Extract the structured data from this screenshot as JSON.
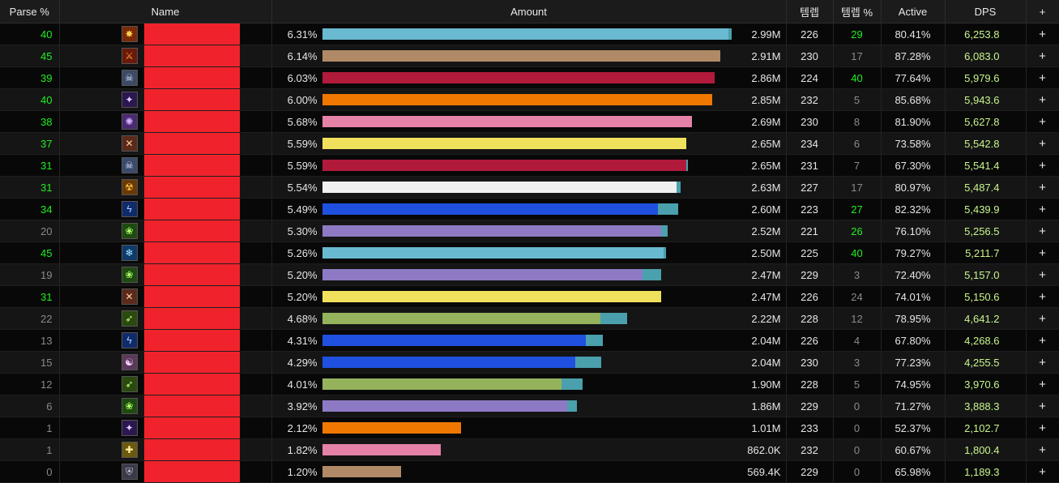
{
  "headers": {
    "parse": "Parse %",
    "name": "Name",
    "amount": "Amount",
    "ilvl": "템렙",
    "ilvl_pct": "템렙 %",
    "active": "Active",
    "dps": "DPS",
    "plus": "+"
  },
  "rows": [
    {
      "parse": "40",
      "parse_color": "#1ff01f",
      "icon": "fire-icon",
      "glyph": "✸",
      "icon_bg": "#7a2a06",
      "icon_fg": "#ffcf4a",
      "name": "",
      "pct": "6.31%",
      "fill": 0.963,
      "ext": 0.008,
      "color": "#69b9d1",
      "amount": "2.99M",
      "ilvl": "226",
      "ilvl_pct": "29",
      "ilvl_pct_color": "#1ff01f",
      "active": "80.41%",
      "dps": "6,253.8",
      "plus": "+"
    },
    {
      "parse": "45",
      "parse_color": "#1ff01f",
      "icon": "warrior-icon",
      "glyph": "⚔",
      "icon_bg": "#6a1a0a",
      "icon_fg": "#ffa040",
      "name": "",
      "pct": "6.14%",
      "fill": 0.945,
      "ext": 0,
      "color": "#b08a66",
      "amount": "2.91M",
      "ilvl": "230",
      "ilvl_pct": "17",
      "ilvl_pct_color": "#8a8a8a",
      "active": "87.28%",
      "dps": "6,083.0",
      "plus": "+"
    },
    {
      "parse": "39",
      "parse_color": "#1ff01f",
      "icon": "skull-icon",
      "glyph": "☠",
      "icon_bg": "#3c4a66",
      "icon_fg": "#dde6ff",
      "name": "",
      "pct": "6.03%",
      "fill": 0.93,
      "ext": 0,
      "color": "#b21a3b",
      "amount": "2.86M",
      "ilvl": "224",
      "ilvl_pct": "40",
      "ilvl_pct_color": "#1ff01f",
      "active": "77.64%",
      "dps": "5,979.6",
      "plus": "+"
    },
    {
      "parse": "40",
      "parse_color": "#1ff01f",
      "icon": "arcane-icon",
      "glyph": "✦",
      "icon_bg": "#2a1850",
      "icon_fg": "#e6c8ff",
      "name": "",
      "pct": "6.00%",
      "fill": 0.925,
      "ext": 0,
      "color": "#f07800",
      "amount": "2.85M",
      "ilvl": "232",
      "ilvl_pct": "5",
      "ilvl_pct_color": "#8a8a8a",
      "active": "85.68%",
      "dps": "5,943.6",
      "plus": "+"
    },
    {
      "parse": "38",
      "parse_color": "#1ff01f",
      "icon": "shadow-icon",
      "glyph": "✺",
      "icon_bg": "#4a2a70",
      "icon_fg": "#d6b0ff",
      "name": "",
      "pct": "5.68%",
      "fill": 0.877,
      "ext": 0,
      "color": "#e681a8",
      "amount": "2.69M",
      "ilvl": "230",
      "ilvl_pct": "8",
      "ilvl_pct_color": "#8a8a8a",
      "active": "81.90%",
      "dps": "5,627.8",
      "plus": "+"
    },
    {
      "parse": "37",
      "parse_color": "#1ff01f",
      "icon": "rogue-icon",
      "glyph": "✕",
      "icon_bg": "#5a2a1a",
      "icon_fg": "#ffd0a0",
      "name": "",
      "pct": "5.59%",
      "fill": 0.863,
      "ext": 0,
      "color": "#f0e15c",
      "amount": "2.65M",
      "ilvl": "234",
      "ilvl_pct": "6",
      "ilvl_pct_color": "#8a8a8a",
      "active": "73.58%",
      "dps": "5,542.8",
      "plus": "+"
    },
    {
      "parse": "31",
      "parse_color": "#1ff01f",
      "icon": "skull-icon",
      "glyph": "☠",
      "icon_bg": "#3a4a6a",
      "icon_fg": "#dde6ff",
      "name": "",
      "pct": "5.59%",
      "fill": 0.863,
      "ext": 0.004,
      "color": "#b21a3b",
      "amount": "2.65M",
      "ilvl": "231",
      "ilvl_pct": "7",
      "ilvl_pct_color": "#8a8a8a",
      "active": "67.30%",
      "dps": "5,541.4",
      "plus": "+"
    },
    {
      "parse": "31",
      "parse_color": "#1ff01f",
      "icon": "demon-icon",
      "glyph": "☢",
      "icon_bg": "#6a3a06",
      "icon_fg": "#ffc040",
      "name": "",
      "pct": "5.54%",
      "fill": 0.84,
      "ext": 0.009,
      "color": "#f0f0f0",
      "amount": "2.63M",
      "ilvl": "227",
      "ilvl_pct": "17",
      "ilvl_pct_color": "#8a8a8a",
      "active": "80.97%",
      "dps": "5,487.4",
      "plus": "+"
    },
    {
      "parse": "34",
      "parse_color": "#1ff01f",
      "icon": "lightning-icon",
      "glyph": "ϟ",
      "icon_bg": "#102a6a",
      "icon_fg": "#a8d0ff",
      "name": "",
      "pct": "5.49%",
      "fill": 0.797,
      "ext": 0.049,
      "color": "#1f50e0",
      "amount": "2.60M",
      "ilvl": "223",
      "ilvl_pct": "27",
      "ilvl_pct_color": "#1ff01f",
      "active": "82.32%",
      "dps": "5,439.9",
      "plus": "+"
    },
    {
      "parse": "20",
      "parse_color": "#8a8a8a",
      "icon": "nature-icon",
      "glyph": "❀",
      "icon_bg": "#1f4a10",
      "icon_fg": "#aaff66",
      "name": "",
      "pct": "5.30%",
      "fill": 0.803,
      "ext": 0.016,
      "color": "#8e7ac4",
      "amount": "2.52M",
      "ilvl": "221",
      "ilvl_pct": "26",
      "ilvl_pct_color": "#1ff01f",
      "active": "76.10%",
      "dps": "5,256.5",
      "plus": "+"
    },
    {
      "parse": "45",
      "parse_color": "#1ff01f",
      "icon": "frost-icon",
      "glyph": "❄",
      "icon_bg": "#103a6a",
      "icon_fg": "#9fe8ff",
      "name": "",
      "pct": "5.26%",
      "fill": 0.809,
      "ext": 0.006,
      "color": "#69b9d1",
      "amount": "2.50M",
      "ilvl": "225",
      "ilvl_pct": "40",
      "ilvl_pct_color": "#1ff01f",
      "active": "79.27%",
      "dps": "5,211.7",
      "plus": "+"
    },
    {
      "parse": "19",
      "parse_color": "#8a8a8a",
      "icon": "nature-icon",
      "glyph": "❀",
      "icon_bg": "#1f4a10",
      "icon_fg": "#aaff66",
      "name": "",
      "pct": "5.20%",
      "fill": 0.759,
      "ext": 0.045,
      "color": "#8e7ac4",
      "amount": "2.47M",
      "ilvl": "229",
      "ilvl_pct": "3",
      "ilvl_pct_color": "#8a8a8a",
      "active": "72.40%",
      "dps": "5,157.0",
      "plus": "+"
    },
    {
      "parse": "31",
      "parse_color": "#1ff01f",
      "icon": "rogue-icon",
      "glyph": "✕",
      "icon_bg": "#5a2a1a",
      "icon_fg": "#ffd0a0",
      "name": "",
      "pct": "5.20%",
      "fill": 0.803,
      "ext": 0,
      "color": "#f0e15c",
      "amount": "2.47M",
      "ilvl": "226",
      "ilvl_pct": "24",
      "ilvl_pct_color": "#8a8a8a",
      "active": "74.01%",
      "dps": "5,150.6",
      "plus": "+"
    },
    {
      "parse": "22",
      "parse_color": "#8a8a8a",
      "icon": "hunter-icon",
      "glyph": "➶",
      "icon_bg": "#2a4a10",
      "icon_fg": "#c8ff80",
      "name": "",
      "pct": "4.68%",
      "fill": 0.659,
      "ext": 0.063,
      "color": "#94b35c",
      "amount": "2.22M",
      "ilvl": "228",
      "ilvl_pct": "12",
      "ilvl_pct_color": "#8a8a8a",
      "active": "78.95%",
      "dps": "4,641.2",
      "plus": "+"
    },
    {
      "parse": "13",
      "parse_color": "#8a8a8a",
      "icon": "lightning-icon",
      "glyph": "ϟ",
      "icon_bg": "#102a6a",
      "icon_fg": "#a8d0ff",
      "name": "",
      "pct": "4.31%",
      "fill": 0.625,
      "ext": 0.04,
      "color": "#1f50e0",
      "amount": "2.04M",
      "ilvl": "226",
      "ilvl_pct": "4",
      "ilvl_pct_color": "#8a8a8a",
      "active": "67.80%",
      "dps": "4,268.6",
      "plus": "+"
    },
    {
      "parse": "15",
      "parse_color": "#8a8a8a",
      "icon": "monk-icon",
      "glyph": "☯",
      "icon_bg": "#5a3a5a",
      "icon_fg": "#ffd0ff",
      "name": "",
      "pct": "4.29%",
      "fill": 0.6,
      "ext": 0.062,
      "color": "#1f50e0",
      "amount": "2.04M",
      "ilvl": "230",
      "ilvl_pct": "3",
      "ilvl_pct_color": "#8a8a8a",
      "active": "77.23%",
      "dps": "4,255.5",
      "plus": "+"
    },
    {
      "parse": "12",
      "parse_color": "#8a8a8a",
      "icon": "hunter-icon",
      "glyph": "➶",
      "icon_bg": "#2a4a10",
      "icon_fg": "#c8ff80",
      "name": "",
      "pct": "4.01%",
      "fill": 0.568,
      "ext": 0.05,
      "color": "#94b35c",
      "amount": "1.90M",
      "ilvl": "228",
      "ilvl_pct": "5",
      "ilvl_pct_color": "#8a8a8a",
      "active": "74.95%",
      "dps": "3,970.6",
      "plus": "+"
    },
    {
      "parse": "6",
      "parse_color": "#8a8a8a",
      "icon": "nature-icon",
      "glyph": "❀",
      "icon_bg": "#1f4a10",
      "icon_fg": "#aaff66",
      "name": "",
      "pct": "3.92%",
      "fill": 0.581,
      "ext": 0.023,
      "color": "#8e7ac4",
      "amount": "1.86M",
      "ilvl": "229",
      "ilvl_pct": "0",
      "ilvl_pct_color": "#8a8a8a",
      "active": "71.27%",
      "dps": "3,888.3",
      "plus": "+"
    },
    {
      "parse": "1",
      "parse_color": "#8a8a8a",
      "icon": "arcane-icon",
      "glyph": "✦",
      "icon_bg": "#2a1850",
      "icon_fg": "#e6c8ff",
      "name": "",
      "pct": "2.12%",
      "fill": 0.329,
      "ext": 0,
      "color": "#f07800",
      "amount": "1.01M",
      "ilvl": "233",
      "ilvl_pct": "0",
      "ilvl_pct_color": "#8a8a8a",
      "active": "52.37%",
      "dps": "2,102.7",
      "plus": "+"
    },
    {
      "parse": "1",
      "parse_color": "#8a8a8a",
      "icon": "holy-icon",
      "glyph": "✚",
      "icon_bg": "#6a5a10",
      "icon_fg": "#fff0a0",
      "name": "",
      "pct": "1.82%",
      "fill": 0.281,
      "ext": 0,
      "color": "#e681a8",
      "amount": "862.0K",
      "ilvl": "232",
      "ilvl_pct": "0",
      "ilvl_pct_color": "#8a8a8a",
      "active": "60.67%",
      "dps": "1,800.4",
      "plus": "+"
    },
    {
      "parse": "0",
      "parse_color": "#8a8a8a",
      "icon": "shield-icon",
      "glyph": "⛨",
      "icon_bg": "#3a3a4a",
      "icon_fg": "#d0d0e0",
      "name": "",
      "pct": "1.20%",
      "fill": 0.187,
      "ext": 0,
      "color": "#b08a66",
      "amount": "569.4K",
      "ilvl": "229",
      "ilvl_pct": "0",
      "ilvl_pct_color": "#8a8a8a",
      "active": "65.98%",
      "dps": "1,189.3",
      "plus": "+"
    }
  ]
}
